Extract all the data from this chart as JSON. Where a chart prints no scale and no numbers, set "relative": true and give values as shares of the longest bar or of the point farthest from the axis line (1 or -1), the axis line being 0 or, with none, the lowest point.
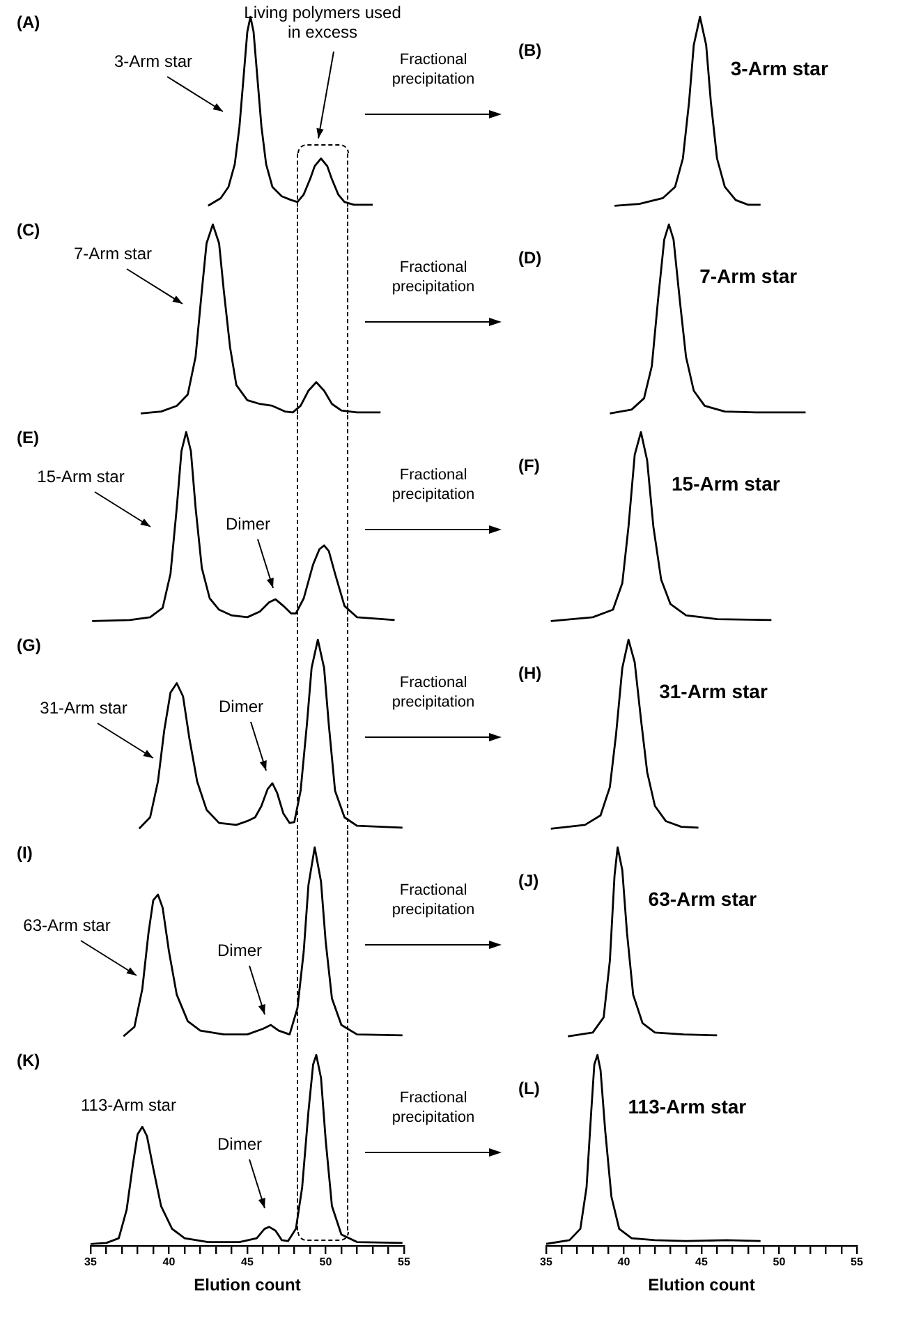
{
  "chart_data": [
    {
      "type": "line",
      "title": "(A)",
      "xlim": [
        35,
        55
      ],
      "relative": true,
      "tick_labels": false,
      "series": [
        {
          "color": "#000000",
          "x": [
            42.5,
            43.3,
            43.8,
            44.2,
            44.5,
            44.8,
            45.0,
            45.2,
            45.4,
            45.6,
            45.9,
            46.2,
            46.6,
            47.2,
            47.8,
            48.2,
            48.6,
            49.0,
            49.3,
            49.7,
            50.1,
            50.4,
            50.8,
            51.2,
            51.8,
            53.0
          ],
          "values": [
            0,
            0.04,
            0.1,
            0.22,
            0.42,
            0.72,
            0.92,
            1,
            0.92,
            0.72,
            0.42,
            0.22,
            0.1,
            0.05,
            0.03,
            0.02,
            0.06,
            0.14,
            0.21,
            0.25,
            0.21,
            0.14,
            0.06,
            0.02,
            0.005,
            0.005
          ]
        }
      ],
      "annotations": [
        "3-Arm star",
        "Living polymers used in excess"
      ],
      "ref_lines": [
        {
          "axis": "x",
          "value": 48.2,
          "line_style": "dashed"
        },
        {
          "axis": "x",
          "value": 51.4,
          "line_style": "dashed"
        }
      ]
    },
    {
      "type": "line",
      "title": "(B)",
      "xlim": [
        35,
        55
      ],
      "relative": true,
      "tick_labels": false,
      "series": [
        {
          "name": "3-Arm star",
          "color": "#000000",
          "x": [
            39.4,
            41.0,
            42.5,
            43.3,
            43.8,
            44.2,
            44.5,
            44.9,
            45.3,
            45.6,
            46.0,
            46.5,
            47.2,
            48.0,
            48.8
          ],
          "values": [
            0,
            0.01,
            0.04,
            0.1,
            0.25,
            0.55,
            0.85,
            1,
            0.85,
            0.55,
            0.25,
            0.1,
            0.03,
            0.005,
            0.005
          ]
        }
      ],
      "annotations": [
        "Fractional precipitation"
      ]
    },
    {
      "type": "line",
      "title": "(C)",
      "xlim": [
        35,
        55
      ],
      "relative": true,
      "tick_labels": false,
      "series": [
        {
          "color": "#000000",
          "x": [
            38.2,
            39.5,
            40.5,
            41.2,
            41.7,
            42.1,
            42.4,
            42.8,
            43.2,
            43.5,
            43.9,
            44.3,
            45.0,
            45.8,
            46.6,
            47.4,
            47.9,
            48.4,
            48.9,
            49.4,
            49.9,
            50.4,
            51.0,
            52.0,
            53.5
          ],
          "values": [
            0,
            0.01,
            0.04,
            0.1,
            0.3,
            0.65,
            0.9,
            1,
            0.9,
            0.65,
            0.35,
            0.15,
            0.07,
            0.05,
            0.04,
            0.01,
            0.005,
            0.04,
            0.12,
            0.165,
            0.12,
            0.05,
            0.015,
            0.005,
            0.005
          ]
        }
      ],
      "annotations": [
        "7-Arm star"
      ],
      "ref_lines": [
        {
          "axis": "x",
          "value": 48.2,
          "line_style": "dashed"
        },
        {
          "axis": "x",
          "value": 51.4,
          "line_style": "dashed"
        }
      ]
    },
    {
      "type": "line",
      "title": "(D)",
      "xlim": [
        35,
        55
      ],
      "relative": true,
      "tick_labels": false,
      "series": [
        {
          "name": "7-Arm star",
          "color": "#000000",
          "x": [
            39.1,
            40.5,
            41.3,
            41.8,
            42.2,
            42.6,
            42.9,
            43.2,
            43.6,
            44.0,
            44.5,
            45.2,
            46.5,
            48.5,
            51.7
          ],
          "values": [
            0,
            0.02,
            0.08,
            0.25,
            0.6,
            0.92,
            1,
            0.92,
            0.6,
            0.3,
            0.12,
            0.04,
            0.01,
            0.005,
            0.005
          ]
        }
      ],
      "annotations": [
        "Fractional precipitation"
      ]
    },
    {
      "type": "line",
      "title": "(E)",
      "xlim": [
        35,
        55
      ],
      "relative": true,
      "tick_labels": false,
      "series": [
        {
          "color": "#000000",
          "x": [
            35.1,
            37.5,
            38.8,
            39.6,
            40.1,
            40.5,
            40.8,
            41.1,
            41.4,
            41.7,
            42.1,
            42.6,
            43.2,
            44.0,
            45.0,
            45.8,
            46.4,
            46.8,
            47.3,
            47.8,
            48.1,
            48.6,
            49.2,
            49.6,
            49.9,
            50.2,
            50.6,
            51.2,
            52.0,
            54.4
          ],
          "values": [
            0,
            0.005,
            0.02,
            0.07,
            0.25,
            0.6,
            0.9,
            1,
            0.9,
            0.6,
            0.28,
            0.12,
            0.06,
            0.03,
            0.02,
            0.05,
            0.1,
            0.115,
            0.08,
            0.04,
            0.04,
            0.12,
            0.3,
            0.38,
            0.4,
            0.37,
            0.25,
            0.08,
            0.02,
            0.005
          ]
        }
      ],
      "annotations": [
        "15-Arm star",
        "Dimer"
      ],
      "ref_lines": [
        {
          "axis": "x",
          "value": 48.2,
          "line_style": "dashed"
        },
        {
          "axis": "x",
          "value": 51.4,
          "line_style": "dashed"
        }
      ]
    },
    {
      "type": "line",
      "title": "(F)",
      "xlim": [
        35,
        55
      ],
      "relative": true,
      "tick_labels": false,
      "series": [
        {
          "name": "15-Arm star",
          "color": "#000000",
          "x": [
            35.3,
            38.0,
            39.3,
            39.9,
            40.3,
            40.7,
            41.1,
            41.5,
            41.9,
            42.4,
            43.0,
            44.0,
            46.0,
            49.5
          ],
          "values": [
            0,
            0.02,
            0.06,
            0.2,
            0.5,
            0.88,
            1,
            0.85,
            0.5,
            0.22,
            0.09,
            0.03,
            0.01,
            0.005
          ]
        }
      ],
      "annotations": [
        "Fractional precipitation"
      ]
    },
    {
      "type": "line",
      "title": "(G)",
      "xlim": [
        35,
        55
      ],
      "relative": true,
      "tick_labels": false,
      "series": [
        {
          "color": "#000000",
          "x": [
            38.1,
            38.8,
            39.3,
            39.7,
            40.1,
            40.5,
            40.9,
            41.3,
            41.8,
            42.4,
            43.2,
            44.3,
            45.0,
            45.5,
            45.9,
            46.3,
            46.6,
            46.9,
            47.3,
            47.7,
            48.0,
            48.4,
            48.8,
            49.1,
            49.5,
            49.9,
            50.2,
            50.6,
            51.2,
            52.0,
            54.9
          ],
          "values": [
            0,
            0.06,
            0.25,
            0.52,
            0.72,
            0.77,
            0.7,
            0.48,
            0.25,
            0.1,
            0.03,
            0.02,
            0.04,
            0.06,
            0.12,
            0.21,
            0.24,
            0.19,
            0.08,
            0.03,
            0.035,
            0.2,
            0.55,
            0.85,
            1,
            0.85,
            0.55,
            0.2,
            0.06,
            0.015,
            0.005
          ]
        }
      ],
      "annotations": [
        "31-Arm star",
        "Dimer"
      ],
      "ref_lines": [
        {
          "axis": "x",
          "value": 48.2,
          "line_style": "dashed"
        },
        {
          "axis": "x",
          "value": 51.4,
          "line_style": "dashed"
        }
      ]
    },
    {
      "type": "line",
      "title": "(H)",
      "xlim": [
        35,
        55
      ],
      "relative": true,
      "tick_labels": false,
      "series": [
        {
          "name": "31-Arm star",
          "color": "#000000",
          "x": [
            35.3,
            37.5,
            38.5,
            39.1,
            39.5,
            39.9,
            40.3,
            40.7,
            41.1,
            41.5,
            42.0,
            42.7,
            43.7,
            44.8
          ],
          "values": [
            0,
            0.02,
            0.07,
            0.22,
            0.5,
            0.85,
            1,
            0.88,
            0.58,
            0.3,
            0.12,
            0.04,
            0.01,
            0.005
          ]
        }
      ],
      "annotations": [
        "Fractional precipitation"
      ]
    },
    {
      "type": "line",
      "title": "(I)",
      "xlim": [
        35,
        55
      ],
      "relative": true,
      "tick_labels": false,
      "series": [
        {
          "color": "#000000",
          "x": [
            37.1,
            37.8,
            38.3,
            38.7,
            39.0,
            39.3,
            39.6,
            40.0,
            40.5,
            41.2,
            42.0,
            43.5,
            45.0,
            46.0,
            46.5,
            47.0,
            47.7,
            48.2,
            48.6,
            48.9,
            49.3,
            49.7,
            50.0,
            50.4,
            51.0,
            52.0,
            54.9
          ],
          "values": [
            0,
            0.05,
            0.25,
            0.55,
            0.72,
            0.75,
            0.68,
            0.45,
            0.22,
            0.08,
            0.03,
            0.01,
            0.01,
            0.04,
            0.06,
            0.03,
            0.01,
            0.15,
            0.45,
            0.8,
            1,
            0.82,
            0.5,
            0.2,
            0.06,
            0.01,
            0.005
          ]
        }
      ],
      "annotations": [
        "63-Arm star",
        "Dimer"
      ],
      "ref_lines": [
        {
          "axis": "x",
          "value": 48.2,
          "line_style": "dashed"
        },
        {
          "axis": "x",
          "value": 51.4,
          "line_style": "dashed"
        }
      ]
    },
    {
      "type": "line",
      "title": "(J)",
      "xlim": [
        35,
        55
      ],
      "relative": true,
      "tick_labels": false,
      "series": [
        {
          "name": "63-Arm star",
          "color": "#000000",
          "x": [
            36.4,
            38.0,
            38.7,
            39.1,
            39.4,
            39.6,
            39.9,
            40.2,
            40.6,
            41.2,
            42.0,
            43.85,
            46.0
          ],
          "values": [
            0,
            0.02,
            0.1,
            0.4,
            0.85,
            1,
            0.88,
            0.55,
            0.22,
            0.07,
            0.02,
            0.01,
            0.005
          ]
        }
      ],
      "annotations": [
        "Fractional precipitation"
      ]
    },
    {
      "type": "line",
      "title": "(K)",
      "xlim": [
        35,
        55
      ],
      "relative": true,
      "xlabel": "Elution count",
      "xticks": [
        35,
        {
          "value": 36,
          "label": null
        },
        {
          "value": 37,
          "label": null
        },
        {
          "value": 38,
          "label": null
        },
        {
          "value": 39,
          "label": null
        },
        40,
        {
          "value": 41,
          "label": null
        },
        {
          "value": 42,
          "label": null
        },
        {
          "value": 43,
          "label": null
        },
        {
          "value": 44,
          "label": null
        },
        45,
        {
          "value": 46,
          "label": null
        },
        {
          "value": 47,
          "label": null
        },
        {
          "value": 48,
          "label": null
        },
        {
          "value": 49,
          "label": null
        },
        50,
        {
          "value": 51,
          "label": null
        },
        {
          "value": 52,
          "label": null
        },
        {
          "value": 53,
          "label": null
        },
        {
          "value": 54,
          "label": null
        },
        55
      ],
      "series": [
        {
          "color": "#000000",
          "x": [
            35.0,
            36.0,
            36.8,
            37.3,
            37.7,
            38.0,
            38.3,
            38.6,
            39.0,
            39.5,
            40.2,
            41.0,
            42.5,
            44.5,
            45.6,
            46.1,
            46.4,
            46.8,
            47.2,
            47.6,
            48.1,
            48.5,
            48.9,
            49.2,
            49.4,
            49.7,
            50.0,
            50.4,
            51.0,
            52.0,
            54.9
          ],
          "values": [
            0,
            0.005,
            0.03,
            0.18,
            0.42,
            0.58,
            0.62,
            0.57,
            0.4,
            0.2,
            0.08,
            0.03,
            0.01,
            0.01,
            0.03,
            0.08,
            0.09,
            0.07,
            0.02,
            0.015,
            0.08,
            0.3,
            0.7,
            0.95,
            1,
            0.88,
            0.55,
            0.2,
            0.05,
            0.01,
            0.005
          ]
        }
      ],
      "annotations": [
        "113-Arm star",
        "Dimer"
      ],
      "ref_lines": [
        {
          "axis": "x",
          "value": 48.2,
          "line_style": "dashed"
        },
        {
          "axis": "x",
          "value": 51.4,
          "line_style": "dashed"
        }
      ]
    },
    {
      "type": "line",
      "title": "(L)",
      "xlim": [
        35,
        55
      ],
      "relative": true,
      "xlabel": "Elution count",
      "xticks": [
        35,
        {
          "value": 36,
          "label": null
        },
        {
          "value": 37,
          "label": null
        },
        {
          "value": 38,
          "label": null
        },
        {
          "value": 39,
          "label": null
        },
        40,
        {
          "value": 41,
          "label": null
        },
        {
          "value": 42,
          "label": null
        },
        {
          "value": 43,
          "label": null
        },
        {
          "value": 44,
          "label": null
        },
        45,
        {
          "value": 46,
          "label": null
        },
        {
          "value": 47,
          "label": null
        },
        {
          "value": 48,
          "label": null
        },
        {
          "value": 49,
          "label": null
        },
        50,
        {
          "value": 51,
          "label": null
        },
        {
          "value": 52,
          "label": null
        },
        {
          "value": 53,
          "label": null
        },
        {
          "value": 54,
          "label": null
        },
        55
      ],
      "series": [
        {
          "name": "113-Arm star",
          "color": "#000000",
          "x": [
            35.0,
            36.5,
            37.2,
            37.6,
            37.9,
            38.1,
            38.3,
            38.5,
            38.8,
            39.2,
            39.7,
            40.5,
            42.0,
            44.0,
            46.6,
            48.8
          ],
          "values": [
            0,
            0.02,
            0.08,
            0.3,
            0.7,
            0.95,
            1,
            0.92,
            0.6,
            0.25,
            0.08,
            0.03,
            0.02,
            0.015,
            0.02,
            0.015
          ]
        }
      ],
      "annotations": [
        "Fractional precipitation"
      ]
    }
  ]
}
